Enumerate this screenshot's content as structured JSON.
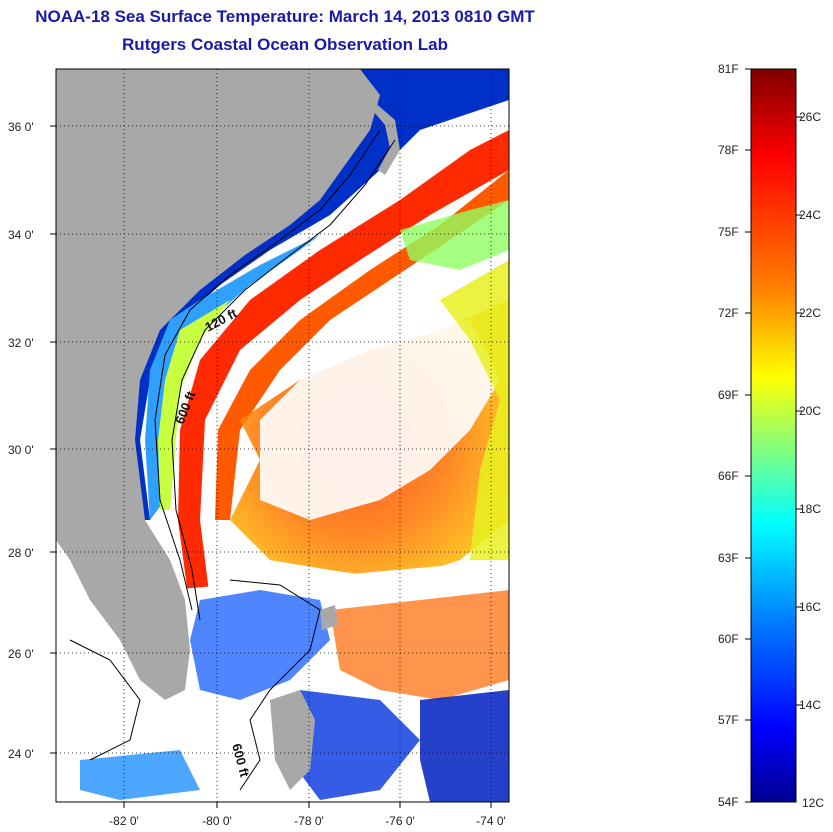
{
  "title": "NOAA-18 Sea Surface Temperature:  March 14, 2013 0810 GMT",
  "subtitle": "Rutgers Coastal Ocean Observation Lab",
  "map": {
    "lat_labels": [
      "36 0'",
      "34 0'",
      "32 0'",
      "30 0'",
      "28 0'",
      "26 0'",
      "24 0'"
    ],
    "lon_labels": [
      "-82 0'",
      "-80 0'",
      "-78 0'",
      "-76 0'",
      "-74 0'"
    ],
    "contour_labels": [
      "120 ft",
      "600 ft",
      "600 ft"
    ]
  },
  "colorbar": {
    "fahrenheit_labels": [
      "81F",
      "78F",
      "75F",
      "72F",
      "69F",
      "66F",
      "63F",
      "60F",
      "57F",
      "54F"
    ],
    "celsius_labels": [
      "26C",
      "24C",
      "22C",
      "20C",
      "18C",
      "16C",
      "14C",
      "12C"
    ],
    "colors": [
      "#800000",
      "#ff0000",
      "#ff8000",
      "#ffff00",
      "#80ff80",
      "#00ffff",
      "#0080ff",
      "#0000ff",
      "#000090"
    ]
  }
}
